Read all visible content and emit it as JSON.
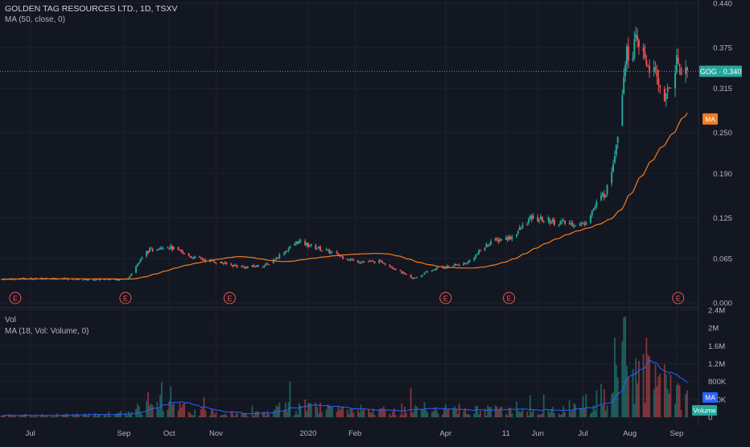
{
  "header": {
    "symbol_line": "GOLDEN TAG RESOURCES LTD., 1D, TSXV",
    "ma_indicator": "MA (50, close, 0)"
  },
  "volume_pane": {
    "label": "Vol",
    "ma_indicator": "MA (18, Vol: Volume, 0)",
    "badge_ma": "MA",
    "badge_volume": "Volume",
    "y_ticks": [
      "2.4M",
      "2M",
      "1.6M",
      "1.2M",
      "800K",
      "400K",
      "0"
    ]
  },
  "price_pane": {
    "y_ticks": [
      "0.440",
      "0.375",
      "0.315",
      "0.250",
      "0.190",
      "0.125",
      "0.065",
      "0.000"
    ],
    "last_price_badge": "GOG · 0.340",
    "ma_badge": "MA",
    "earnings_marker": "E"
  },
  "x_axis": {
    "ticks": [
      "Jul",
      "Sep",
      "Oct",
      "Nov",
      "2020",
      "Feb",
      "Apr",
      "11",
      "Jun",
      "Jul",
      "Aug",
      "Sep"
    ]
  },
  "colors": {
    "background": "#131722",
    "up": "#26a69a",
    "down": "#ef5350",
    "ma_line": "#f57c1f",
    "vol_ma_line": "#2962ff",
    "grid": "#1e222d",
    "axis_text": "#b2b5be"
  },
  "chart_data": {
    "type": "candlestick",
    "title": "GOLDEN TAG RESOURCES LTD., 1D, TSXV",
    "ylim": [
      0,
      0.44
    ],
    "volume_ylim": [
      0,
      2400000
    ],
    "last_price": 0.34,
    "ma_label": "MA (50, close, 0)",
    "ma_last": 0.27,
    "earnings_markers_at": [
      "2019-06-21",
      "2019-09-02",
      "2019-11-10",
      "2020-04-01",
      "2020-05-13",
      "2020-09-02"
    ],
    "anchors": [
      {
        "d": "2019-06-12",
        "c": 0.035
      },
      {
        "d": "2019-07-15",
        "c": 0.036
      },
      {
        "d": "2019-08-10",
        "c": 0.034
      },
      {
        "d": "2019-09-03",
        "c": 0.035
      },
      {
        "d": "2019-09-16",
        "c": 0.075
      },
      {
        "d": "2019-09-28",
        "c": 0.085
      },
      {
        "d": "2019-10-15",
        "c": 0.068
      },
      {
        "d": "2019-11-01",
        "c": 0.06
      },
      {
        "d": "2019-11-20",
        "c": 0.052
      },
      {
        "d": "2019-12-05",
        "c": 0.056
      },
      {
        "d": "2019-12-25",
        "c": 0.09
      },
      {
        "d": "2020-01-15",
        "c": 0.075
      },
      {
        "d": "2020-02-01",
        "c": 0.061
      },
      {
        "d": "2020-02-20",
        "c": 0.06
      },
      {
        "d": "2020-03-10",
        "c": 0.035
      },
      {
        "d": "2020-03-25",
        "c": 0.05
      },
      {
        "d": "2020-04-15",
        "c": 0.058
      },
      {
        "d": "2020-05-01",
        "c": 0.09
      },
      {
        "d": "2020-05-15",
        "c": 0.097
      },
      {
        "d": "2020-05-28",
        "c": 0.125
      },
      {
        "d": "2020-06-15",
        "c": 0.118
      },
      {
        "d": "2020-07-01",
        "c": 0.115
      },
      {
        "d": "2020-07-10",
        "c": 0.145
      },
      {
        "d": "2020-07-18",
        "c": 0.17
      },
      {
        "d": "2020-07-24",
        "c": 0.25
      },
      {
        "d": "2020-07-29",
        "c": 0.36
      },
      {
        "d": "2020-08-05",
        "c": 0.38
      },
      {
        "d": "2020-08-15",
        "c": 0.345
      },
      {
        "d": "2020-08-25",
        "c": 0.3
      },
      {
        "d": "2020-09-01",
        "c": 0.355
      },
      {
        "d": "2020-09-08",
        "c": 0.34
      }
    ],
    "volume_profile": [
      {
        "d": "2019-06-12",
        "v": 40000
      },
      {
        "d": "2019-09-01",
        "v": 60000
      },
      {
        "d": "2019-09-16",
        "v": 400000
      },
      {
        "d": "2019-10-15",
        "v": 150000
      },
      {
        "d": "2019-11-20",
        "v": 60000
      },
      {
        "d": "2019-12-25",
        "v": 250000
      },
      {
        "d": "2020-02-01",
        "v": 100000
      },
      {
        "d": "2020-03-10",
        "v": 200000
      },
      {
        "d": "2020-05-01",
        "v": 150000
      },
      {
        "d": "2020-06-15",
        "v": 150000
      },
      {
        "d": "2020-07-10",
        "v": 400000
      },
      {
        "d": "2020-07-25",
        "v": 1200000
      },
      {
        "d": "2020-08-01",
        "v": 1400000
      },
      {
        "d": "2020-08-15",
        "v": 900000
      },
      {
        "d": "2020-09-08",
        "v": 300000
      }
    ]
  }
}
